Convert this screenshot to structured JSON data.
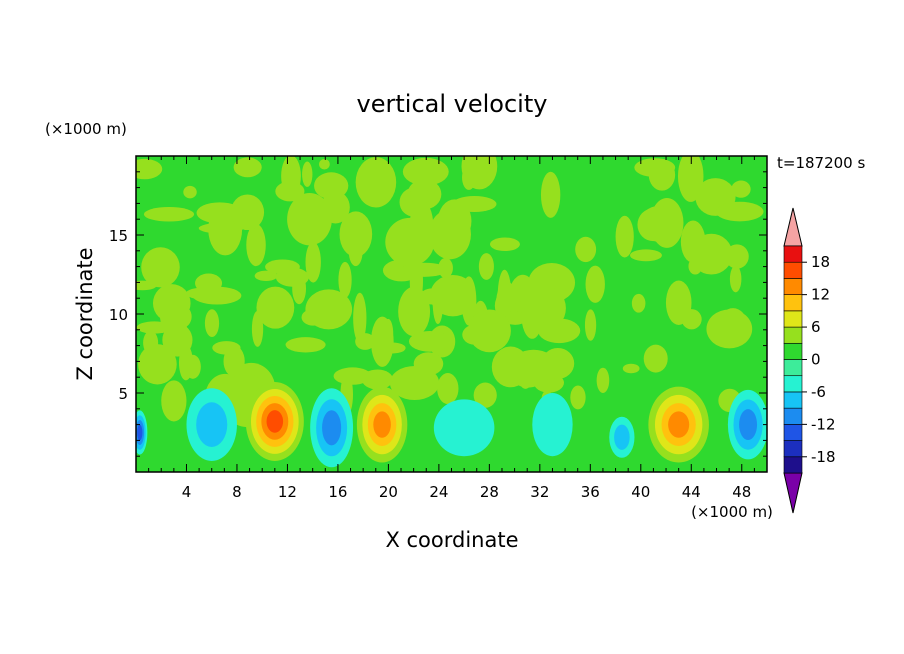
{
  "chart_data": {
    "type": "heatmap",
    "title": "vertical velocity",
    "xlabel": "X coordinate",
    "ylabel": "Z coordinate",
    "x_unit": "(×1000 m)",
    "y_unit": "(×1000 m)",
    "time_label": "t=187200 s",
    "xlim": [
      0,
      50
    ],
    "ylim": [
      0,
      20
    ],
    "xticks": [
      4,
      8,
      12,
      16,
      20,
      24,
      28,
      32,
      36,
      40,
      44,
      48
    ],
    "yticks": [
      5,
      10,
      15
    ],
    "colorbar": {
      "levels": [
        -21,
        -18,
        -15,
        -12,
        -9,
        -6,
        -3,
        0,
        3,
        6,
        9,
        12,
        15,
        18,
        21
      ],
      "tick_labels": [
        18,
        12,
        6,
        0,
        -6,
        -12,
        -18
      ],
      "colors": [
        "#7a00a8",
        "#1e0f8c",
        "#1c2fbf",
        "#1f55e6",
        "#1c8cf0",
        "#17c4f5",
        "#26f2d2",
        "#3dec9a",
        "#2fd92f",
        "#96e01e",
        "#dfe619",
        "#ffc20e",
        "#ff8a00",
        "#ff4d00",
        "#e81010",
        "#f5a3a3"
      ]
    },
    "cells": [
      {
        "x": 11,
        "z": 3.2,
        "rx": 2.3,
        "rz": 2.5,
        "w": 15
      },
      {
        "x": 19.5,
        "z": 3.0,
        "rx": 2.0,
        "rz": 2.4,
        "w": 12
      },
      {
        "x": 43,
        "z": 3.0,
        "rx": 2.4,
        "rz": 2.4,
        "w": 12
      },
      {
        "x": 3,
        "z": 4.5,
        "rx": 1.0,
        "rz": 1.3,
        "w": 4
      },
      {
        "x": 6,
        "z": 3.0,
        "rx": 2.0,
        "rz": 2.3,
        "w": -7
      },
      {
        "x": 15.5,
        "z": 2.8,
        "rx": 1.7,
        "rz": 2.5,
        "w": -10
      },
      {
        "x": 26,
        "z": 2.8,
        "rx": 2.4,
        "rz": 1.8,
        "w": -3
      },
      {
        "x": 33,
        "z": 3.0,
        "rx": 1.6,
        "rz": 2.0,
        "w": -5
      },
      {
        "x": 38.5,
        "z": 2.2,
        "rx": 1.0,
        "rz": 1.3,
        "w": -7
      },
      {
        "x": 48.5,
        "z": 3.0,
        "rx": 1.6,
        "rz": 2.2,
        "w": -10
      },
      {
        "x": 0.3,
        "z": 2.5,
        "rx": 0.6,
        "rz": 1.4,
        "w": -14
      },
      {
        "x": 37,
        "z": 5.8,
        "rx": 0.5,
        "rz": 0.8,
        "w": 5
      },
      {
        "x": 31.5,
        "z": 7.0,
        "rx": 0.5,
        "rz": 0.6,
        "w": 3
      }
    ]
  }
}
